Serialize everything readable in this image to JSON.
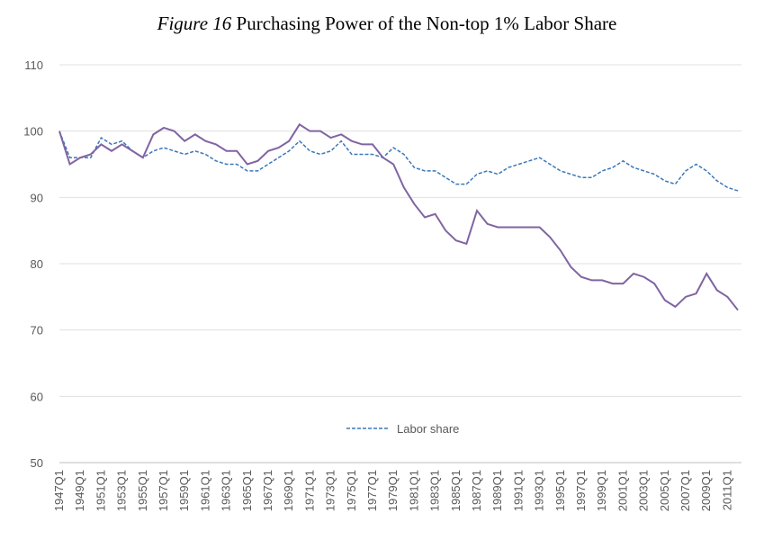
{
  "chart_data": {
    "type": "line",
    "figure_label": "Figure 16",
    "title": "Purchasing Power of the Non-top 1% Labor Share",
    "categories": [
      "1947Q1",
      null,
      "1949Q1",
      null,
      "1951Q1",
      null,
      "1953Q1",
      null,
      "1955Q1",
      null,
      "1957Q1",
      null,
      "1959Q1",
      null,
      "1961Q1",
      null,
      "1963Q1",
      null,
      "1965Q1",
      null,
      "1967Q1",
      null,
      "1969Q1",
      null,
      "1971Q1",
      null,
      "1973Q1",
      null,
      "1975Q1",
      null,
      "1977Q1",
      null,
      "1979Q1",
      null,
      "1981Q1",
      null,
      "1983Q1",
      null,
      "1985Q1",
      null,
      "1987Q1",
      null,
      "1989Q1",
      null,
      "1991Q1",
      null,
      "1993Q1",
      null,
      "1995Q1",
      null,
      "1997Q1",
      null,
      "1999Q1",
      null,
      "2001Q1",
      null,
      "2003Q1",
      null,
      "2005Q1",
      null,
      "2007Q1",
      null,
      "2009Q1",
      null,
      "2011Q1",
      null
    ],
    "series": [
      {
        "name": "Labor share",
        "color": "#3a78b8",
        "dashed": true,
        "values": [
          100,
          96,
          96,
          96,
          99,
          98,
          98.5,
          97,
          96,
          97,
          97.5,
          97,
          96.5,
          97,
          96.5,
          95.5,
          95,
          95,
          94,
          94,
          95,
          96,
          97,
          98.5,
          97,
          96.5,
          97,
          98.5,
          96.5,
          96.5,
          96.5,
          96,
          97.5,
          96.5,
          94.5,
          94,
          94,
          93,
          92,
          92,
          93.5,
          94,
          93.5,
          94.5,
          95,
          95.5,
          96,
          95,
          94,
          93.5,
          93,
          93,
          94,
          94.5,
          95.5,
          94.5,
          94,
          93.5,
          92.5,
          92,
          94,
          95,
          94,
          92.5,
          91.5,
          91
        ]
      },
      {
        "color": "#8064a2",
        "dashed": false,
        "values": [
          100,
          95,
          96,
          96.5,
          98,
          97,
          98,
          97,
          96,
          99.5,
          100.5,
          100,
          98.5,
          99.5,
          98.5,
          98,
          97,
          97,
          95,
          95.5,
          97,
          97.5,
          98.5,
          101,
          100,
          100,
          99,
          99.5,
          98.5,
          98,
          98,
          96,
          95,
          91.5,
          89,
          87,
          87.5,
          85,
          83.5,
          83,
          88,
          86,
          85.5,
          85.5,
          85.5,
          85.5,
          85.5,
          84,
          82,
          79.5,
          78,
          77.5,
          77.5,
          77,
          77,
          78.5,
          78,
          77,
          74.5,
          73.5,
          75,
          75.5,
          78.5,
          76,
          75,
          73
        ]
      }
    ],
    "ylim": [
      50,
      110
    ],
    "yticks": [
      50,
      60,
      70,
      80,
      90,
      100,
      110
    ],
    "grid": true,
    "legend": "bottom"
  }
}
